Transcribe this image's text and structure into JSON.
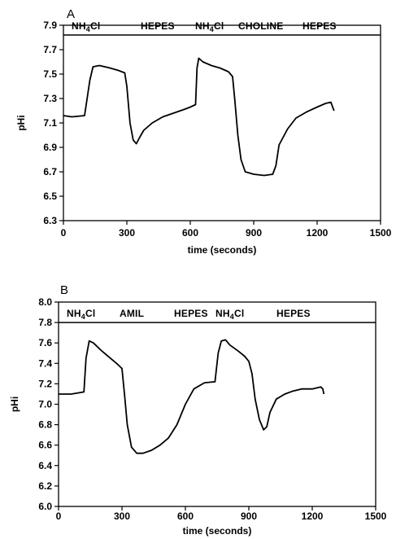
{
  "chart_data": [
    {
      "type": "line",
      "panel": "A",
      "title": "",
      "xlabel": "time (seconds)",
      "ylabel": "pHi",
      "xlim": [
        0,
        1500
      ],
      "ylim": [
        6.3,
        7.9
      ],
      "x_ticks": [
        "0",
        "300",
        "600",
        "900",
        "1200",
        "1500"
      ],
      "y_ticks": [
        "6.3",
        "6.5",
        "6.7",
        "6.9",
        "7.1",
        "7.3",
        "7.5",
        "7.7",
        "7.9"
      ],
      "grid": false,
      "conditions": [
        "NH4Cl",
        "HEPES",
        "NH4Cl",
        "CHOLINE",
        "HEPES"
      ],
      "condition_bar_y": 7.82,
      "series": [
        {
          "x": [
            0,
            40,
            100,
            125,
            140,
            170,
            220,
            260,
            290,
            300,
            315,
            330,
            345,
            360,
            380,
            420,
            470,
            520,
            570,
            600,
            625,
            632,
            640,
            660,
            700,
            740,
            780,
            800,
            810,
            825,
            840,
            860,
            900,
            950,
            990,
            1005,
            1020,
            1060,
            1100,
            1150,
            1200,
            1240,
            1265,
            1280
          ],
          "y": [
            7.16,
            7.15,
            7.16,
            7.45,
            7.56,
            7.57,
            7.55,
            7.53,
            7.51,
            7.4,
            7.1,
            6.96,
            6.93,
            6.98,
            7.04,
            7.1,
            7.15,
            7.18,
            7.21,
            7.23,
            7.25,
            7.55,
            7.63,
            7.6,
            7.57,
            7.55,
            7.52,
            7.48,
            7.3,
            7.0,
            6.8,
            6.7,
            6.68,
            6.67,
            6.68,
            6.75,
            6.92,
            7.05,
            7.14,
            7.19,
            7.23,
            7.26,
            7.27,
            7.2
          ]
        }
      ]
    },
    {
      "type": "line",
      "panel": "B",
      "title": "",
      "xlabel": "time (seconds)",
      "ylabel": "pHi",
      "xlim": [
        0,
        1500
      ],
      "ylim": [
        6.0,
        8.0
      ],
      "x_ticks": [
        "0",
        "300",
        "600",
        "900",
        "1200",
        "1500"
      ],
      "y_ticks": [
        "6.0",
        "6.2",
        "6.4",
        "6.6",
        "6.8",
        "7.0",
        "7.2",
        "7.4",
        "7.6",
        "7.8",
        "8.0"
      ],
      "grid": false,
      "conditions": [
        "NH4Cl",
        "AMIL",
        "HEPES",
        "NH4Cl",
        "HEPES"
      ],
      "condition_bar_y": 7.8,
      "series": [
        {
          "x": [
            0,
            60,
            120,
            130,
            145,
            165,
            200,
            240,
            280,
            300,
            312,
            325,
            345,
            370,
            400,
            440,
            480,
            520,
            560,
            600,
            640,
            690,
            740,
            755,
            770,
            790,
            810,
            850,
            880,
            900,
            915,
            930,
            950,
            970,
            985,
            1000,
            1030,
            1070,
            1110,
            1150,
            1200,
            1240,
            1250,
            1255
          ],
          "y": [
            7.1,
            7.1,
            7.12,
            7.45,
            7.62,
            7.6,
            7.53,
            7.46,
            7.39,
            7.35,
            7.1,
            6.8,
            6.58,
            6.52,
            6.52,
            6.55,
            6.6,
            6.67,
            6.8,
            7.0,
            7.15,
            7.21,
            7.22,
            7.5,
            7.62,
            7.63,
            7.58,
            7.52,
            7.47,
            7.42,
            7.3,
            7.05,
            6.85,
            6.75,
            6.78,
            6.92,
            7.05,
            7.1,
            7.13,
            7.15,
            7.15,
            7.17,
            7.15,
            7.1
          ]
        }
      ]
    }
  ]
}
